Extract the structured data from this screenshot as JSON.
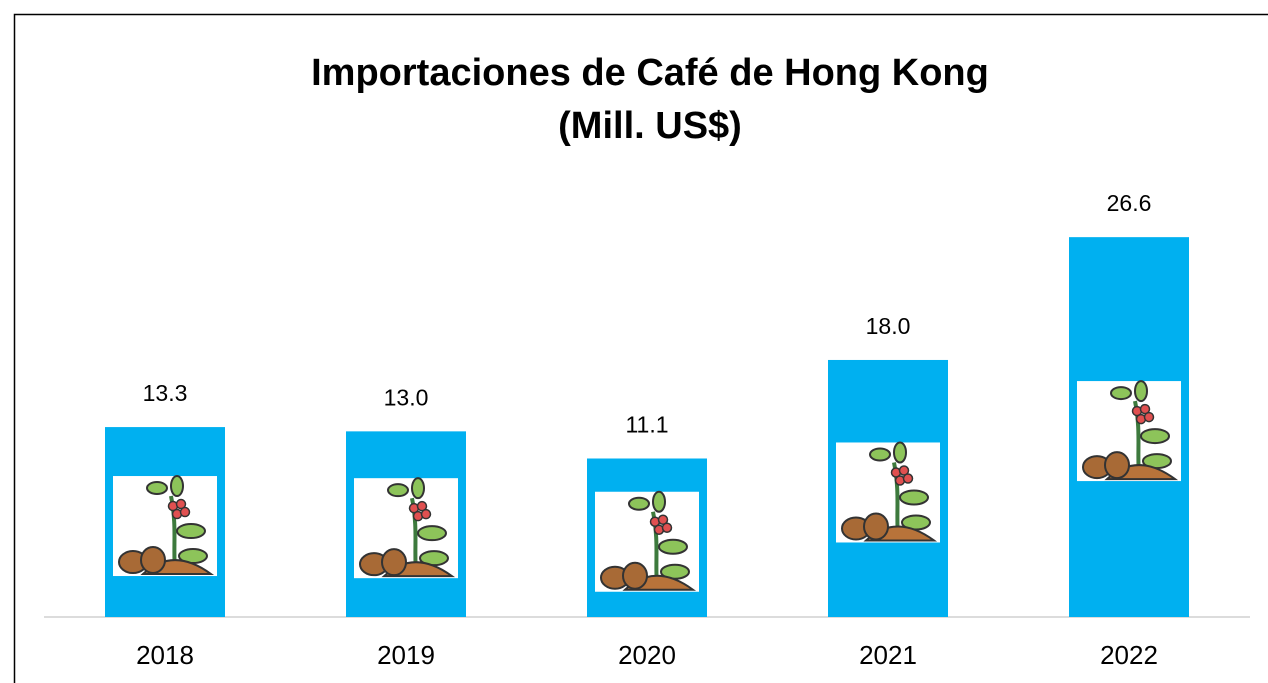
{
  "chart_data": {
    "type": "bar",
    "title": "Importaciones de Café de Hong Kong",
    "subtitle": "(Mill. US$)",
    "categories": [
      "2018",
      "2019",
      "2020",
      "2021",
      "2022"
    ],
    "values": [
      13.3,
      13.0,
      11.1,
      18.0,
      26.6
    ],
    "value_labels": [
      "13.3",
      "13.0",
      "11.1",
      "18.0",
      "26.6"
    ],
    "color": "#00b0f0",
    "ylim": [
      0,
      30
    ],
    "grid": false
  }
}
